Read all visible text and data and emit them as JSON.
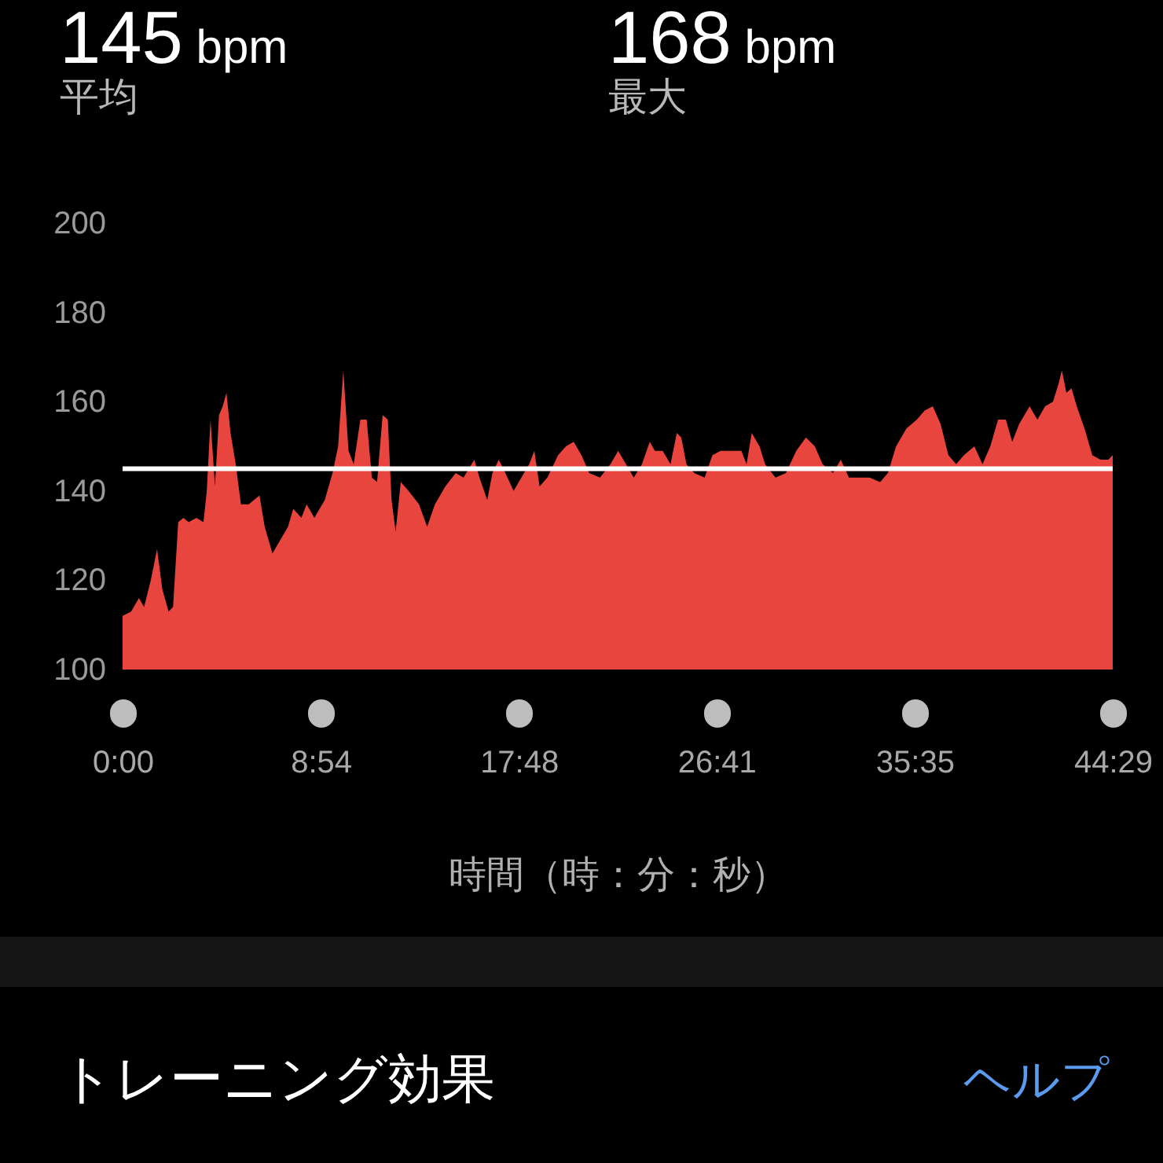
{
  "chart_data": {
    "type": "area",
    "xlabel": "時間（時：分：秒）",
    "color": "#e8453f",
    "annotations": [
      "145 bpm",
      "平均",
      "168 bpm",
      "最大",
      "トレーニング効果",
      "ヘルプ"
    ],
    "x": [
      0,
      23,
      44,
      58,
      76,
      93,
      107,
      124,
      136,
      150,
      164,
      178,
      199,
      218,
      227,
      237,
      249,
      260,
      270,
      280,
      291,
      305,
      319,
      340,
      369,
      383,
      404,
      425,
      446,
      460,
      482,
      496,
      517,
      545,
      566,
      581,
      595,
      609,
      623,
      641,
      658,
      672,
      686,
      701,
      715,
      725,
      736,
      750,
      771,
      799,
      821,
      842,
      870,
      898,
      919,
      948,
      962,
      983,
      997,
      1014,
      1032,
      1054,
      1075,
      1096,
      1110,
      1124,
      1145,
      1174,
      1195,
      1216,
      1237,
      1258,
      1287,
      1315,
      1336,
      1357,
      1378,
      1400,
      1421,
      1435,
      1456,
      1477,
      1494,
      1506,
      1520,
      1541,
      1569,
      1590,
      1612,
      1640,
      1668,
      1682,
      1696,
      1717,
      1732,
      1760,
      1788,
      1816,
      1842,
      1866,
      1887,
      1915,
      1936,
      1958,
      1986,
      2014,
      2042,
      2063,
      2085,
      2113,
      2141,
      2162,
      2184,
      2205,
      2226,
      2247,
      2268,
      2296,
      2318,
      2339,
      2360,
      2381,
      2398,
      2417,
      2445,
      2466,
      2487,
      2508,
      2523,
      2532,
      2544,
      2558,
      2572,
      2593,
      2614,
      2636,
      2657,
      2669
    ],
    "values": [
      112,
      113,
      116,
      114,
      120,
      127,
      118,
      113,
      114,
      133,
      134,
      133,
      134,
      133,
      140,
      156,
      141,
      157,
      159,
      162,
      153,
      146,
      137,
      137,
      139,
      132,
      126,
      129,
      132,
      136,
      134,
      137,
      134,
      138,
      144,
      150,
      167,
      149,
      146,
      156,
      156,
      143,
      142,
      157,
      156,
      138,
      131,
      142,
      140,
      137,
      132,
      137,
      141,
      144,
      143,
      147,
      143,
      138,
      144,
      147,
      144,
      140,
      143,
      146,
      149,
      141,
      143,
      148,
      150,
      151,
      148,
      144,
      143,
      146,
      149,
      146,
      143,
      146,
      151,
      149,
      149,
      146,
      153,
      152,
      146,
      144,
      143,
      148,
      149,
      149,
      149,
      146,
      153,
      150,
      146,
      143,
      144,
      149,
      152,
      150,
      146,
      144,
      147,
      143,
      143,
      143,
      142,
      144,
      150,
      154,
      156,
      158,
      159,
      155,
      148,
      146,
      148,
      150,
      146,
      150,
      156,
      156,
      151,
      155,
      159,
      156,
      159,
      160,
      164,
      167,
      162,
      163,
      159,
      154,
      148,
      147,
      147,
      148
    ],
    "xlim": [
      0,
      2669
    ],
    "ylim": [
      100,
      200
    ],
    "xticks": [
      {
        "value": 0,
        "label": "0:00"
      },
      {
        "value": 534,
        "label": "8:54"
      },
      {
        "value": 1068,
        "label": "17:48"
      },
      {
        "value": 1601,
        "label": "26:41"
      },
      {
        "value": 2135,
        "label": "35:35"
      },
      {
        "value": 2669,
        "label": "44:29"
      }
    ],
    "yticks": [
      100,
      120,
      140,
      160,
      180,
      200
    ],
    "ref_lines": [
      {
        "axis": "y",
        "value": 145,
        "color": "#ffffff"
      }
    ]
  }
}
